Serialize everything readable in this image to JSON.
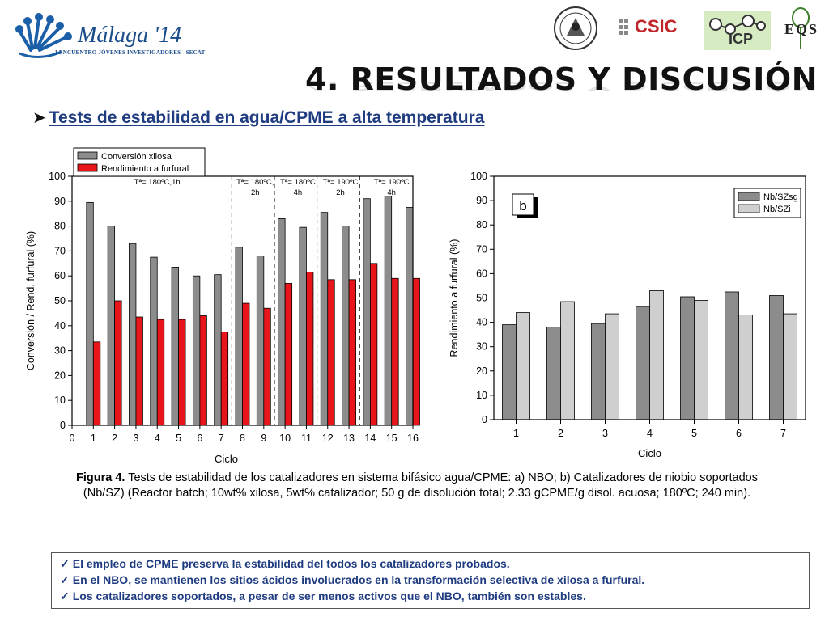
{
  "header": {
    "event_name": "Málaga '14",
    "event_subtitle": "I ENCUENTRO JÓVENES INVESTIGADORES - SECAT",
    "title": "4. RESULTADOS Y DISCUSIÓN",
    "csic_logo_text": "CSIC",
    "icp_logo_text": "ICP",
    "eqs_logo_text": "EQS"
  },
  "subtitle": "Tests de estabilidad en agua/CPME a alta temperatura",
  "chart_data": [
    {
      "type": "bar",
      "x": [
        1,
        2,
        3,
        4,
        5,
        6,
        7,
        8,
        9,
        10,
        11,
        12,
        13,
        14,
        15,
        16
      ],
      "series": [
        {
          "name": "Conversión xilosa",
          "values": [
            89.5,
            80,
            73,
            67.5,
            63.5,
            60,
            60.5,
            71.5,
            68,
            83,
            79.5,
            85.5,
            80,
            91,
            92,
            87.5
          ]
        },
        {
          "name": "Rendimiento a furfural",
          "values": [
            33.5,
            50,
            43.5,
            42.5,
            42.5,
            44,
            37.5,
            49,
            47,
            57,
            61.5,
            58.5,
            58.5,
            65,
            59,
            59
          ]
        }
      ],
      "xlabel": "Ciclo",
      "ylabel": "Conversión / Rend. furfural (%)",
      "xlim": [
        0,
        16
      ],
      "ylim": [
        0,
        100
      ],
      "xticks": [
        0,
        1,
        2,
        3,
        4,
        5,
        6,
        7,
        8,
        9,
        10,
        11,
        12,
        13,
        14,
        15,
        16
      ],
      "yticks": [
        0,
        10,
        20,
        30,
        40,
        50,
        60,
        70,
        80,
        90,
        100
      ],
      "colors": [
        "#8c8c8c",
        "#e8151b"
      ],
      "legend_position": "top-left",
      "grid": false,
      "condition_separators": [
        7.5,
        9.5,
        11.5,
        13.5
      ],
      "annotations": [
        {
          "x": 4,
          "lines": [
            "Tª= 180ºC,1h"
          ]
        },
        {
          "x": 8.6,
          "lines": [
            "Tª= 180ºC,",
            "2h"
          ]
        },
        {
          "x": 10.6,
          "lines": [
            "Tª= 180ºC",
            "4h"
          ]
        },
        {
          "x": 12.6,
          "lines": [
            "Tª= 190ºC",
            "2h"
          ]
        },
        {
          "x": 15,
          "lines": [
            "Tª= 190ºC",
            "4h"
          ]
        }
      ]
    },
    {
      "type": "bar",
      "categories": [
        "1",
        "2",
        "3",
        "4",
        "5",
        "6",
        "7"
      ],
      "series": [
        {
          "name": "Nb/SZsg",
          "values": [
            39,
            38,
            39.5,
            46.5,
            50.5,
            52.5,
            51
          ]
        },
        {
          "name": "Nb/SZi",
          "values": [
            44,
            48.5,
            43.5,
            53,
            49,
            43,
            43.5
          ]
        }
      ],
      "xlabel": "Ciclo",
      "ylabel": "Rendimiento a furfural (%)",
      "ylim": [
        0,
        100
      ],
      "yticks": [
        0,
        10,
        20,
        30,
        40,
        50,
        60,
        70,
        80,
        90,
        100
      ],
      "colors": [
        "#8c8c8c",
        "#cfcfcf"
      ],
      "legend_position": "top-right",
      "grid": false,
      "panel_label": "b"
    }
  ],
  "caption": {
    "prefix": "Figura 4.",
    "text": "Tests de estabilidad de los catalizadores en sistema bifásico agua/CPME: a) NBO; b) Catalizadores de niobio soportados (Nb/SZ) (Reactor batch; 10wt% xilosa, 5wt% catalizador; 50 g de disolución total; 2.33 gCPME/g disol. acuosa; 180ºC; 240 min)."
  },
  "conclusions": [
    "El empleo de CPME preserva la estabilidad del todos los catalizadores probados.",
    "En el NBO, se mantienen los sitios ácidos involucrados en la transformación selectiva de xilosa a furfural.",
    "Los catalizadores soportados, a pesar de ser menos activos que el NBO, también son estables."
  ]
}
